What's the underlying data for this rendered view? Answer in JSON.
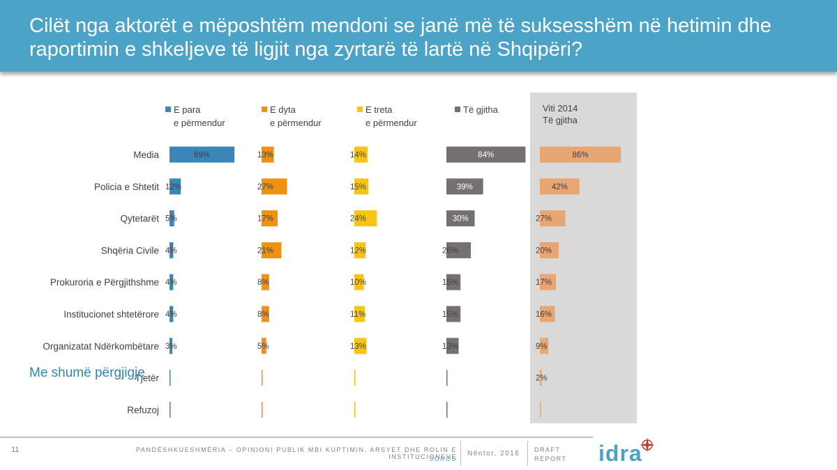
{
  "header": {
    "title": "Cilët nga aktorët e mëposhtëm mendoni se janë më të suksesshëm në hetimin dhe raportimin e shkeljeve të ligjit nga zyrtarë të lartë në Shqipëri?"
  },
  "side_note": "Me shumë përgjigje",
  "footer": {
    "page_number": "11",
    "text": "PANDËSHKUESHMËRIA – OPINIONI PUBLIK MBI KUPTIMIN, ARSYET DHE ROLIN E INSTITUCIONEVE",
    "sub": "SOROS",
    "date": "Nëntor, 2016",
    "draft_line1": "DRAFT",
    "draft_line2": "REPORT",
    "logo": "idra"
  },
  "colors": {
    "header": "#4ba3c7",
    "blue": "#3a87b8",
    "orange": "#f0920f",
    "yellow": "#f8c514",
    "gray": "#767171",
    "peach": "#e7a672",
    "panel": "#d9d9d9"
  },
  "chart_data": {
    "type": "bar",
    "categories": [
      "Media",
      "Policia e Shtetit",
      "Qytetarët",
      "Shqëria Civile",
      "Prokuroria e Përgjithshme",
      "Institucionet shtetërore",
      "Organizatat Ndërkombëtare",
      "Tjetër",
      "Refuzoj"
    ],
    "series": [
      {
        "name_line1": "E para",
        "name_line2": "e përmendur",
        "color": "#3a87b8",
        "values": [
          69,
          12,
          5,
          4,
          4,
          4,
          3,
          0,
          0
        ],
        "labels": [
          "69%",
          "12%",
          "5%",
          "4%",
          "4%",
          "4%",
          "3%",
          "",
          ""
        ]
      },
      {
        "name_line1": "E dyta",
        "name_line2": "e përmendur",
        "color": "#f0920f",
        "values": [
          13,
          27,
          17,
          21,
          8,
          8,
          5,
          0,
          0
        ],
        "labels": [
          "13%",
          "27%",
          "17%",
          "21%",
          "8%",
          "8%",
          "5%",
          "",
          ""
        ]
      },
      {
        "name_line1": "E treta",
        "name_line2": "e përmendur",
        "color": "#f8c514",
        "values": [
          14,
          15,
          24,
          12,
          10,
          11,
          13,
          0,
          0
        ],
        "labels": [
          "14%",
          "15%",
          "24%",
          "12%",
          "10%",
          "11%",
          "13%",
          "",
          ""
        ]
      },
      {
        "name_line1": "Të gjitha",
        "name_line2": "",
        "color": "#767171",
        "values": [
          84,
          39,
          30,
          26,
          15,
          15,
          13,
          0,
          0
        ],
        "labels": [
          "84%",
          "39%",
          "30%",
          "26%",
          "15%",
          "15%",
          "13%",
          "",
          ""
        ]
      },
      {
        "name_line1": "Viti 2014",
        "name_line2": "Të gjitha",
        "color": "#e7a672",
        "values": [
          86,
          42,
          27,
          20,
          17,
          16,
          9,
          2,
          0
        ],
        "labels": [
          "86%",
          "42%",
          "27%",
          "20%",
          "17%",
          "16%",
          "9%",
          "2%",
          ""
        ]
      }
    ]
  }
}
